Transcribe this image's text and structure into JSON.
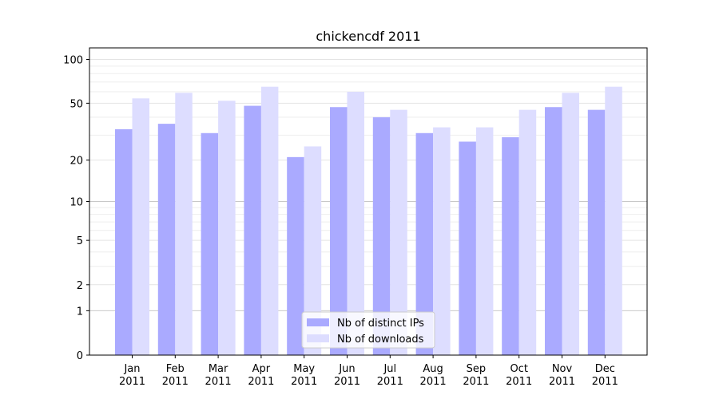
{
  "chart_data": {
    "type": "bar",
    "title": "chickencdf 2011",
    "xlabel": "",
    "ylabel": "",
    "y_scale": "log(1+y)",
    "ylim": [
      0,
      120
    ],
    "yticks": [
      0,
      1,
      2,
      5,
      10,
      20,
      50,
      100
    ],
    "grid": "horizontal",
    "legend_position": "bottom-center",
    "categories": [
      [
        "Jan",
        "2011"
      ],
      [
        "Feb",
        "2011"
      ],
      [
        "Mar",
        "2011"
      ],
      [
        "Apr",
        "2011"
      ],
      [
        "May",
        "2011"
      ],
      [
        "Jun",
        "2011"
      ],
      [
        "Jul",
        "2011"
      ],
      [
        "Aug",
        "2011"
      ],
      [
        "Sep",
        "2011"
      ],
      [
        "Oct",
        "2011"
      ],
      [
        "Nov",
        "2011"
      ],
      [
        "Dec",
        "2011"
      ]
    ],
    "series": [
      {
        "name": "Nb of distinct IPs",
        "color": "#aaaaff",
        "values": [
          33,
          36,
          31,
          48,
          21,
          47,
          40,
          31,
          27,
          29,
          47,
          45
        ]
      },
      {
        "name": "Nb of downloads",
        "color": "#ddddff",
        "values": [
          54,
          59,
          52,
          65,
          25,
          60,
          45,
          34,
          34,
          45,
          59,
          65
        ]
      }
    ]
  }
}
